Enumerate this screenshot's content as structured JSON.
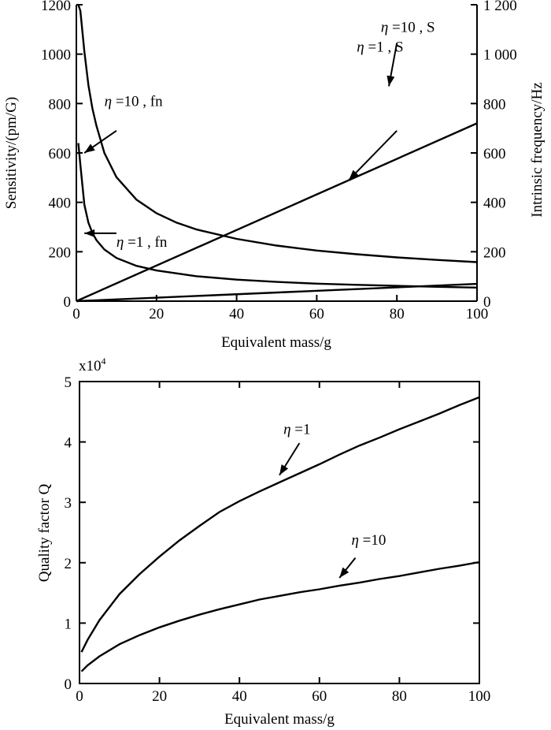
{
  "chart_data": [
    {
      "type": "line",
      "xlabel": "Equivalent mass/g",
      "ylabel_left": "Sensitivity/(pm/G)",
      "ylabel_right": "Intrinsic frequency/Hz",
      "xlim": [
        0,
        100
      ],
      "ylim_left": [
        0,
        1200
      ],
      "ylim_right": [
        0,
        1200
      ],
      "x_ticks": [
        0,
        20,
        40,
        60,
        80,
        100
      ],
      "y_ticks_left": [
        0,
        200,
        400,
        600,
        800,
        1000,
        1200
      ],
      "y_tick_labels_left": [
        "0",
        "200",
        "400",
        "600",
        "800",
        "1000",
        "1200"
      ],
      "y_ticks_right": [
        0,
        200,
        400,
        600,
        800,
        1000,
        1200
      ],
      "y_tick_labels_right": [
        "0",
        "200",
        "400",
        "600",
        "800",
        "1 000",
        "1 200"
      ],
      "grid": false,
      "series": [
        {
          "name": "η =10 , fn",
          "axis": "right",
          "x": [
            0.5,
            1,
            2,
            3,
            4,
            5,
            7,
            10,
            15,
            20,
            25,
            30,
            40,
            50,
            60,
            70,
            80,
            90,
            100
          ],
          "values": [
            1200,
            1175,
            1010,
            875,
            780,
            710,
            600,
            502,
            411,
            356,
            318,
            290,
            252,
            225,
            205,
            190,
            177,
            167,
            158
          ]
        },
        {
          "name": "η =1 , fn",
          "axis": "right",
          "x": [
            0.5,
            1,
            2,
            3,
            4,
            5,
            7,
            10,
            15,
            20,
            30,
            40,
            50,
            60,
            70,
            80,
            90,
            100
          ],
          "values": [
            640,
            552,
            390,
            318,
            276,
            247,
            209,
            175,
            143,
            124,
            101,
            87,
            78,
            71,
            66,
            62,
            58,
            55
          ]
        },
        {
          "name": "η =1 , S",
          "axis": "left",
          "x": [
            0,
            100
          ],
          "values": [
            0,
            720
          ]
        },
        {
          "name": "η =10 , S",
          "axis": "left",
          "x": [
            0,
            100
          ],
          "values": [
            0,
            70
          ]
        }
      ],
      "annotations": [
        {
          "label_eta": "η",
          "label_rest": " =10 , fn",
          "series": "η =10 , fn",
          "text_at": [
            7,
            790
          ],
          "arrow_from": [
            10,
            690
          ],
          "arrow_to": [
            2,
            600
          ]
        },
        {
          "label_eta": "η",
          "label_rest": " =1 , fn",
          "series": "η =1 , fn",
          "text_at": [
            10,
            220
          ],
          "arrow_from": [
            10,
            275
          ],
          "arrow_to": [
            2,
            275
          ]
        },
        {
          "label_eta": "η",
          "label_rest": " =1 , S",
          "series": "η =1 , S",
          "text_at": [
            70,
            1010
          ],
          "arrow_from": [
            80,
            690
          ],
          "arrow_to": [
            68,
            490
          ]
        },
        {
          "label_eta": "η",
          "label_rest": " =10 , S",
          "series": "η =10 , S",
          "text_at": [
            76,
            1090
          ],
          "arrow_from": [
            80,
            1045
          ],
          "arrow_to": [
            78,
            870
          ]
        }
      ]
    },
    {
      "type": "line",
      "xlabel": "Equivalent mass/g",
      "ylabel": "Quality factor Q",
      "y_multiplier": "x10",
      "y_multiplier_exp": "4",
      "xlim": [
        0,
        100
      ],
      "ylim": [
        0,
        5
      ],
      "x_ticks": [
        0,
        20,
        40,
        60,
        80,
        100
      ],
      "y_ticks": [
        0,
        1,
        2,
        3,
        4,
        5
      ],
      "grid": false,
      "series": [
        {
          "name": "η =1",
          "x": [
            0.5,
            2,
            5,
            10,
            15,
            20,
            25,
            30,
            35,
            40,
            45,
            50,
            55,
            60,
            65,
            70,
            75,
            80,
            85,
            90,
            95,
            100
          ],
          "values": [
            0.52,
            0.72,
            1.05,
            1.48,
            1.81,
            2.1,
            2.37,
            2.61,
            2.84,
            3.02,
            3.18,
            3.33,
            3.48,
            3.63,
            3.79,
            3.94,
            4.07,
            4.21,
            4.34,
            4.47,
            4.61,
            4.74
          ]
        },
        {
          "name": "η =10",
          "x": [
            0.5,
            2,
            5,
            10,
            15,
            20,
            25,
            30,
            35,
            40,
            45,
            50,
            55,
            60,
            65,
            70,
            75,
            80,
            85,
            90,
            95,
            100
          ],
          "values": [
            0.2,
            0.3,
            0.45,
            0.65,
            0.8,
            0.93,
            1.04,
            1.14,
            1.23,
            1.31,
            1.39,
            1.45,
            1.51,
            1.56,
            1.62,
            1.67,
            1.73,
            1.78,
            1.84,
            1.9,
            1.95,
            2.01
          ]
        }
      ],
      "annotations": [
        {
          "label_eta": "η",
          "label_rest": " =1",
          "series": "η =1",
          "text_at": [
            51,
            4.13
          ],
          "arrow_from": [
            55,
            3.98
          ],
          "arrow_to": [
            50,
            3.45
          ]
        },
        {
          "label_eta": "η",
          "label_rest": " =10",
          "series": "η =10",
          "text_at": [
            68,
            2.3
          ],
          "arrow_from": [
            69,
            2.08
          ],
          "arrow_to": [
            65,
            1.75
          ]
        }
      ]
    }
  ]
}
